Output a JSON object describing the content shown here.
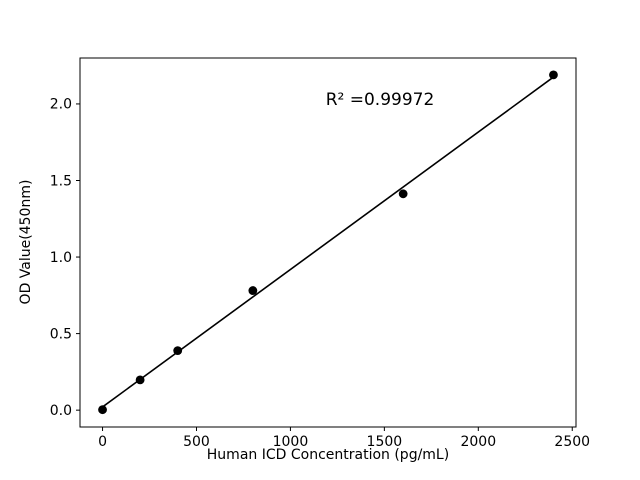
{
  "chart_data": {
    "type": "scatter",
    "x": [
      0,
      200,
      400,
      800,
      1600,
      2400
    ],
    "y": [
      0.003,
      0.198,
      0.389,
      0.781,
      1.413,
      2.19
    ],
    "title": "",
    "xlabel": "Human ICD Concentration (pg/mL)",
    "ylabel": "OD Value(450nm)",
    "annotation": "R² =0.99972",
    "xlim": [
      -120,
      2520
    ],
    "ylim": [
      -0.11,
      2.3
    ],
    "xticks": [
      0,
      500,
      1000,
      1500,
      2000,
      2500
    ],
    "xtick_labels": [
      "0",
      "500",
      "1000",
      "1500",
      "2000",
      "2500"
    ],
    "yticks": [
      0,
      0.5,
      1.0,
      1.5,
      2.0
    ],
    "ytick_labels": [
      "0.0",
      "0.5",
      "1.0",
      "1.5",
      "2.0"
    ],
    "fit_line": true,
    "grid": false,
    "legend": "none",
    "marker_color": "#000000",
    "line_color": "#000000",
    "background": "#ffffff"
  }
}
